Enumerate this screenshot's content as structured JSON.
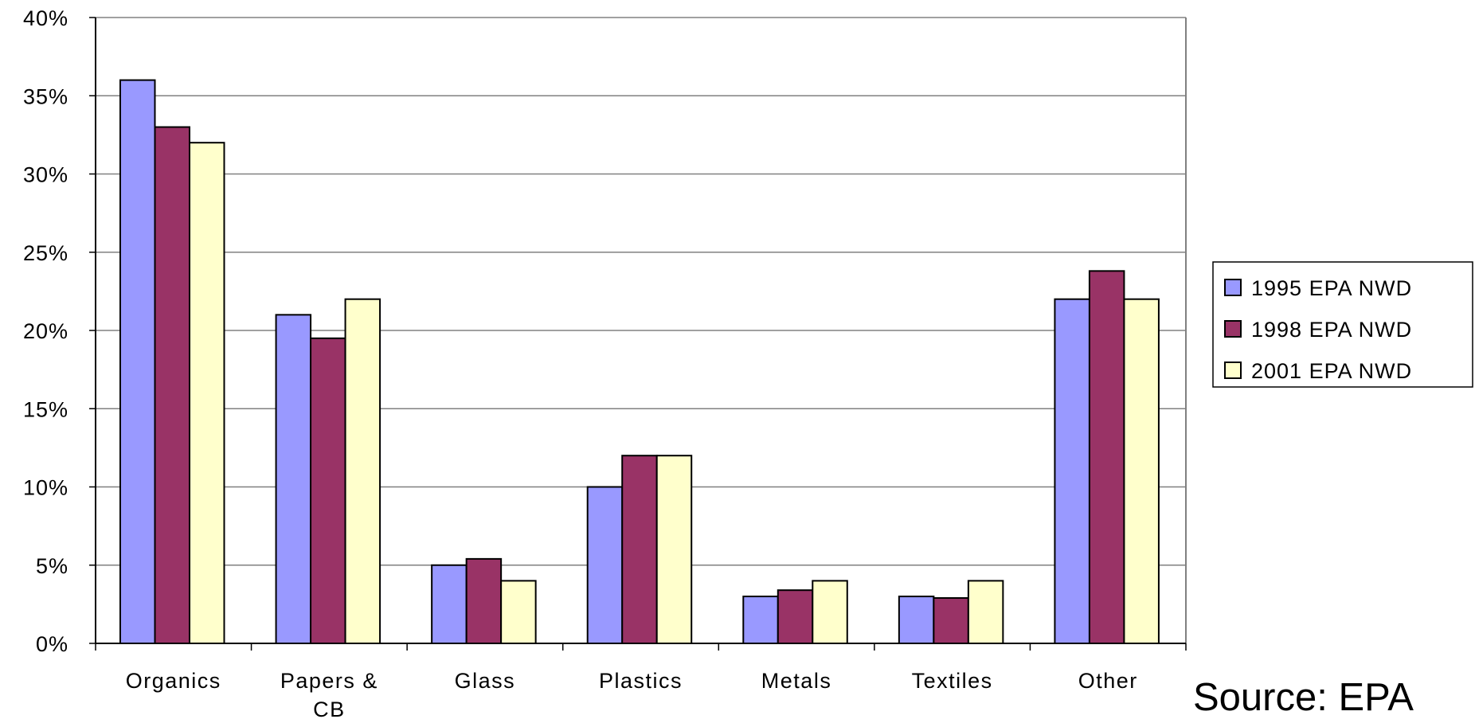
{
  "chart_data": {
    "type": "bar",
    "categories": [
      "Organics",
      "Papers & CB",
      "Glass",
      "Plastics",
      "Metals",
      "Textiles",
      "Other"
    ],
    "category_lines": [
      [
        "Organics"
      ],
      [
        "Papers &",
        "CB"
      ],
      [
        "Glass"
      ],
      [
        "Plastics"
      ],
      [
        "Metals"
      ],
      [
        "Textiles"
      ],
      [
        "Other"
      ]
    ],
    "series": [
      {
        "name": "1995 EPA NWD",
        "color": "#9999ff",
        "values": [
          36,
          21,
          5,
          10,
          3,
          3,
          22
        ]
      },
      {
        "name": "1998 EPA NWD",
        "color": "#993366",
        "values": [
          33,
          19.5,
          5.4,
          12,
          3.4,
          2.9,
          23.8
        ]
      },
      {
        "name": "2001 EPA NWD",
        "color": "#ffffcc",
        "values": [
          32,
          22,
          4,
          12,
          4,
          4,
          22
        ]
      }
    ],
    "ylim": [
      0,
      40
    ],
    "yticks": [
      "0%",
      "5%",
      "10%",
      "15%",
      "20%",
      "25%",
      "30%",
      "35%",
      "40%"
    ],
    "grid": true,
    "legend_position": "right"
  },
  "annotation": {
    "source": "Source: EPA"
  }
}
